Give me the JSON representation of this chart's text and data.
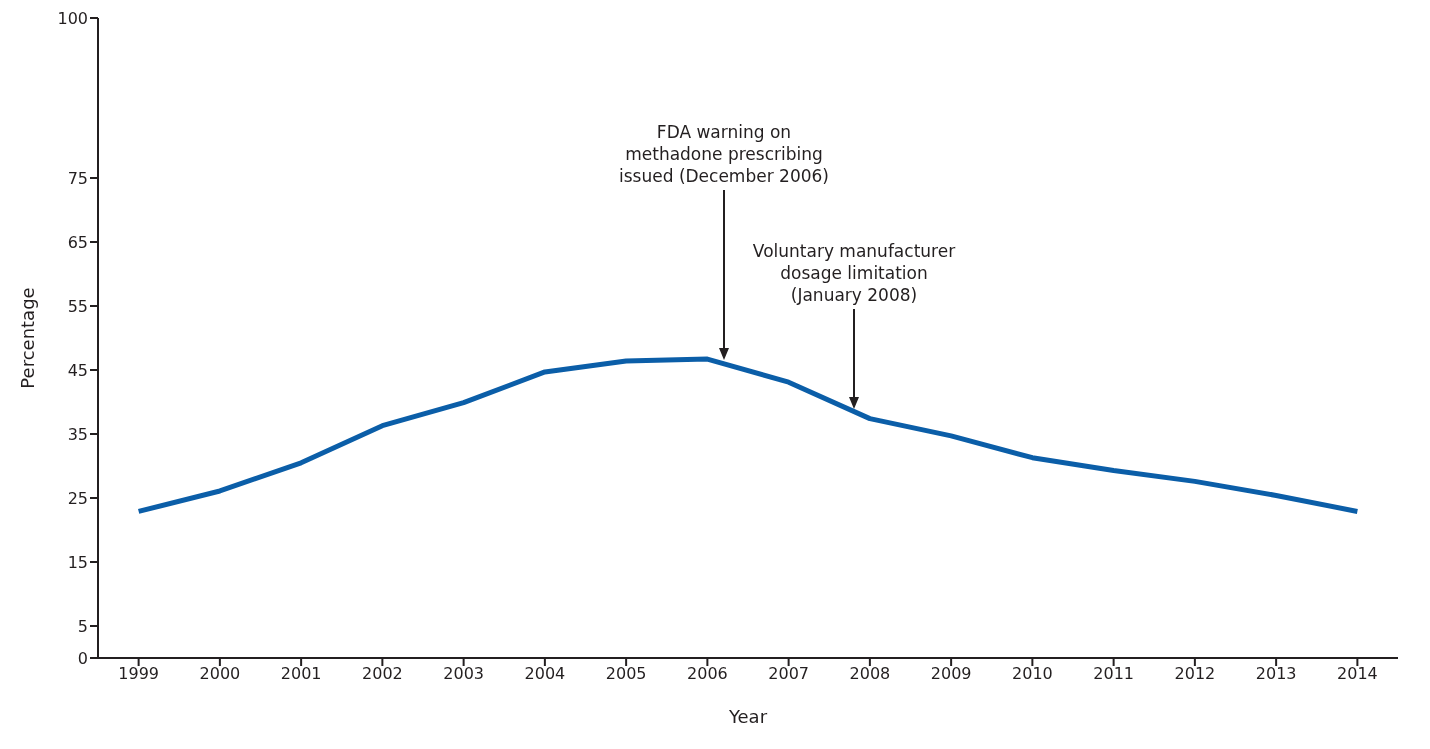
{
  "chart_data": {
    "type": "line",
    "xlabel": "Year",
    "ylabel": "Percentage",
    "x": [
      1999,
      2000,
      2001,
      2002,
      2003,
      2004,
      2005,
      2006,
      2007,
      2008,
      2009,
      2010,
      2011,
      2012,
      2013,
      2014
    ],
    "series": [
      {
        "color": "#0b5ea8",
        "values": [
          22.9,
          26.1,
          30.5,
          36.3,
          39.9,
          44.7,
          46.4,
          46.7,
          43.1,
          37.4,
          34.7,
          31.3,
          29.3,
          27.6,
          25.4,
          22.9
        ]
      }
    ],
    "xlim": [
      1998.5,
      2014.5
    ],
    "xticks": [
      1999,
      2000,
      2001,
      2002,
      2003,
      2004,
      2005,
      2006,
      2007,
      2008,
      2009,
      2010,
      2011,
      2012,
      2013,
      2014
    ],
    "ylim": [
      0,
      100
    ],
    "yticks": [
      0,
      5,
      15,
      25,
      35,
      45,
      55,
      65,
      75,
      100
    ],
    "grid": false,
    "marker": "none",
    "line_style": "solid",
    "annotations": [
      "FDA warning  on\nmethadone prescribing\nissued (December 2006)",
      "Voluntary manufacturer\ndosage limitation\n(January 2008)"
    ]
  }
}
